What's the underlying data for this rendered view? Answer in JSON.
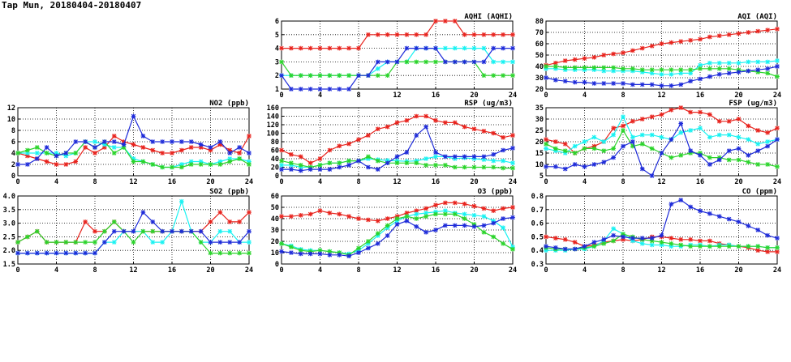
{
  "title": "Tap Mun, 20180404-20180407",
  "colors": {
    "red": "#e8231d",
    "cyan": "#19f2f2",
    "green": "#2bd42b",
    "blue": "#1e2bd9"
  },
  "chart_data": [
    {
      "id": "aqhi",
      "type": "line",
      "title": "AQHI (AQHI)",
      "xlim": [
        0,
        24
      ],
      "ylim": [
        1,
        6
      ],
      "xticks": [
        0,
        4,
        8,
        12,
        16,
        20,
        24
      ],
      "yticks": [
        1,
        2,
        3,
        4,
        5,
        6
      ],
      "grid": true,
      "series": [
        {
          "color": "red",
          "values": [
            4,
            4,
            4,
            4,
            4,
            4,
            4,
            4,
            4,
            5,
            5,
            5,
            5,
            5,
            5,
            5,
            6,
            6,
            6,
            5,
            5,
            5,
            5,
            5,
            5
          ]
        },
        {
          "color": "cyan",
          "values": [
            2,
            2,
            2,
            2,
            2,
            2,
            2,
            2,
            2,
            2,
            2.5,
            3,
            3,
            3,
            4,
            4,
            4,
            4,
            4,
            4,
            4,
            4,
            3,
            3,
            3
          ]
        },
        {
          "color": "green",
          "values": [
            3,
            2,
            2,
            2,
            2,
            2,
            2,
            2,
            2,
            2,
            2,
            2,
            3,
            3,
            3,
            3,
            3,
            3,
            3,
            3,
            3,
            2,
            2,
            2,
            2
          ]
        },
        {
          "color": "blue",
          "values": [
            2,
            1,
            1,
            1,
            1,
            1,
            1,
            1,
            2,
            2,
            3,
            3,
            3,
            4,
            4,
            4,
            4,
            3,
            3,
            3,
            3,
            3,
            4,
            4,
            4
          ]
        }
      ]
    },
    {
      "id": "aqi",
      "type": "line",
      "title": "AQI (AQI)",
      "xlim": [
        0,
        24
      ],
      "ylim": [
        20,
        80
      ],
      "xticks": [
        0,
        4,
        8,
        12,
        16,
        20,
        24
      ],
      "yticks": [
        20,
        30,
        40,
        50,
        60,
        70,
        80
      ],
      "grid": true,
      "series": [
        {
          "color": "red",
          "values": [
            41,
            43,
            45,
            46,
            47,
            48,
            50,
            51,
            52,
            54,
            56,
            58,
            60,
            61,
            62,
            63,
            64,
            66,
            67,
            68,
            69,
            70,
            71,
            72,
            73
          ]
        },
        {
          "color": "cyan",
          "values": [
            38,
            38,
            37,
            37,
            37,
            37,
            36,
            36,
            36,
            36,
            35,
            34,
            33,
            33,
            34,
            34,
            41,
            43,
            43,
            43,
            43,
            44,
            44,
            44,
            45
          ]
        },
        {
          "color": "green",
          "values": [
            40,
            40,
            39,
            39,
            39,
            39,
            39,
            39,
            38,
            38,
            37,
            37,
            37,
            37,
            37,
            37,
            38,
            38,
            38,
            38,
            37,
            36,
            35,
            34,
            31
          ]
        },
        {
          "color": "blue",
          "values": [
            30,
            28,
            27,
            26,
            26,
            25,
            25,
            25,
            25,
            24,
            24,
            24,
            23,
            23,
            24,
            27,
            29,
            31,
            33,
            34,
            35,
            36,
            37,
            38,
            40
          ]
        }
      ]
    },
    {
      "id": "no2",
      "type": "line",
      "title": "NO2 (ppb)",
      "xlim": [
        0,
        24
      ],
      "ylim": [
        0,
        12
      ],
      "xticks": [
        0,
        4,
        8,
        12,
        16,
        20,
        24
      ],
      "yticks": [
        0,
        2,
        4,
        6,
        8,
        10,
        12
      ],
      "grid": true,
      "series": [
        {
          "color": "red",
          "values": [
            4,
            3.5,
            3,
            2.5,
            2,
            2,
            2.5,
            5,
            4,
            5,
            7,
            6,
            5.5,
            5,
            4.5,
            4,
            4,
            4.5,
            5,
            5,
            4.5,
            5.5,
            4.5,
            4,
            7
          ]
        },
        {
          "color": "cyan",
          "values": [
            4,
            4,
            4,
            4,
            4,
            3.5,
            4,
            6,
            6,
            5.5,
            5,
            5,
            3,
            2.5,
            2,
            1.5,
            1.5,
            2,
            2.5,
            2.5,
            2,
            2.5,
            3,
            3,
            2.5
          ]
        },
        {
          "color": "green",
          "values": [
            4,
            4.5,
            5,
            4,
            3.5,
            4,
            4,
            6,
            5,
            6,
            4,
            5,
            2.5,
            2.5,
            2,
            1.5,
            1.5,
            1.5,
            2,
            2,
            2,
            2,
            2.5,
            3,
            2
          ]
        },
        {
          "color": "blue",
          "values": [
            2,
            2,
            3,
            5,
            3.5,
            4,
            6,
            6,
            5,
            6,
            6,
            5.5,
            10.5,
            7,
            6,
            6,
            6,
            6,
            6,
            5.5,
            5,
            6,
            4,
            5,
            4
          ]
        }
      ]
    },
    {
      "id": "rsp",
      "type": "line",
      "title": "RSP (ug/m3)",
      "xlim": [
        0,
        24
      ],
      "ylim": [
        0,
        160
      ],
      "xticks": [
        0,
        4,
        8,
        12,
        16,
        20,
        24
      ],
      "yticks": [
        0,
        20,
        40,
        60,
        80,
        100,
        120,
        140,
        160
      ],
      "grid": true,
      "series": [
        {
          "color": "red",
          "values": [
            60,
            50,
            45,
            30,
            40,
            60,
            70,
            75,
            85,
            95,
            110,
            115,
            125,
            130,
            140,
            140,
            130,
            125,
            125,
            115,
            110,
            105,
            100,
            90,
            95
          ]
        },
        {
          "color": "cyan",
          "values": [
            25,
            25,
            20,
            20,
            25,
            30,
            30,
            35,
            35,
            40,
            38,
            36,
            35,
            34,
            35,
            40,
            45,
            45,
            40,
            42,
            40,
            38,
            35,
            35,
            30
          ]
        },
        {
          "color": "green",
          "values": [
            35,
            30,
            25,
            20,
            25,
            30,
            30,
            35,
            35,
            45,
            35,
            30,
            30,
            30,
            30,
            25,
            25,
            25,
            20,
            20,
            20,
            20,
            20,
            18,
            18
          ]
        },
        {
          "color": "blue",
          "values": [
            15,
            15,
            12,
            15,
            15,
            15,
            20,
            25,
            35,
            20,
            15,
            30,
            45,
            55,
            95,
            115,
            55,
            45,
            45,
            45,
            45,
            45,
            50,
            60,
            65
          ]
        }
      ]
    },
    {
      "id": "fsp",
      "type": "line",
      "title": "FSP (ug/m3)",
      "xlim": [
        0,
        24
      ],
      "ylim": [
        5,
        35
      ],
      "xticks": [
        0,
        4,
        8,
        12,
        16,
        20,
        24
      ],
      "yticks": [
        5,
        10,
        15,
        20,
        25,
        30,
        35
      ],
      "grid": true,
      "series": [
        {
          "color": "red",
          "values": [
            21,
            20,
            19,
            15,
            17,
            18,
            20,
            26,
            27,
            29,
            30,
            31,
            32,
            34,
            35,
            33,
            33,
            32,
            29,
            29,
            30,
            27,
            25,
            24,
            26
          ]
        },
        {
          "color": "cyan",
          "values": [
            17,
            16,
            15,
            18,
            20,
            22,
            20,
            23,
            31,
            22,
            23,
            23,
            22,
            21,
            24,
            25,
            26,
            22,
            23,
            23,
            22,
            21,
            19,
            20,
            21
          ]
        },
        {
          "color": "green",
          "values": [
            19,
            17,
            16,
            15,
            17,
            17,
            16,
            17,
            25,
            18,
            19,
            17,
            15,
            13,
            14,
            15,
            15,
            13,
            13,
            12,
            12,
            11,
            10,
            10,
            9
          ]
        },
        {
          "color": "blue",
          "values": [
            9,
            9,
            8,
            10,
            9,
            10,
            11,
            13,
            18,
            20,
            8,
            5,
            15,
            21,
            28,
            16,
            14,
            10,
            12,
            16,
            17,
            14,
            16,
            18,
            21
          ]
        }
      ]
    },
    {
      "id": "so2",
      "type": "line",
      "title": "SO2 (ppb)",
      "xlim": [
        0,
        24
      ],
      "ylim": [
        1.5,
        4.0
      ],
      "xticks": [
        0,
        4,
        8,
        12,
        16,
        20,
        24
      ],
      "yticks": [
        1.5,
        2.0,
        2.5,
        3.0,
        3.5,
        4.0
      ],
      "grid": true,
      "series": [
        {
          "color": "red",
          "values": [
            2.3,
            2.5,
            2.7,
            2.3,
            2.3,
            2.3,
            2.3,
            3.05,
            2.7,
            2.7,
            3.05,
            2.7,
            2.7,
            2.7,
            2.7,
            2.7,
            2.7,
            2.7,
            2.7,
            2.7,
            3.05,
            3.4,
            3.05,
            3.05,
            3.4
          ]
        },
        {
          "color": "cyan",
          "values": [
            1.9,
            1.9,
            1.9,
            1.9,
            1.9,
            1.9,
            1.9,
            1.9,
            1.9,
            2.3,
            2.3,
            2.7,
            2.7,
            2.7,
            2.3,
            2.3,
            2.7,
            3.8,
            2.7,
            2.3,
            2.3,
            2.7,
            2.7,
            2.3,
            2.3
          ]
        },
        {
          "color": "green",
          "values": [
            2.3,
            2.5,
            2.7,
            2.3,
            2.3,
            2.3,
            2.3,
            2.3,
            2.3,
            2.7,
            3.05,
            2.7,
            2.3,
            2.7,
            2.7,
            2.7,
            2.7,
            2.7,
            2.7,
            2.3,
            1.9,
            1.9,
            1.9,
            1.9,
            1.9
          ]
        },
        {
          "color": "blue",
          "values": [
            1.9,
            1.9,
            1.9,
            1.9,
            1.9,
            1.9,
            1.9,
            1.9,
            1.9,
            2.3,
            2.7,
            2.7,
            2.7,
            3.4,
            3.05,
            2.7,
            2.7,
            2.7,
            2.7,
            2.7,
            2.3,
            2.3,
            2.3,
            2.3,
            2.7
          ]
        }
      ]
    },
    {
      "id": "o3",
      "type": "line",
      "title": "O3 (ppb)",
      "xlim": [
        0,
        24
      ],
      "ylim": [
        0,
        60
      ],
      "xticks": [
        0,
        4,
        8,
        12,
        16,
        20,
        24
      ],
      "yticks": [
        0,
        10,
        20,
        30,
        40,
        50,
        60
      ],
      "grid": true,
      "series": [
        {
          "color": "red",
          "values": [
            42,
            42,
            43,
            44,
            47,
            45,
            44,
            42,
            40,
            39,
            38,
            40,
            42,
            45,
            47,
            49,
            52,
            54,
            54,
            53,
            51,
            49,
            47,
            49,
            50
          ]
        },
        {
          "color": "cyan",
          "values": [
            18,
            16,
            13,
            12,
            12,
            11,
            10,
            9,
            12,
            18,
            25,
            32,
            38,
            42,
            44,
            45,
            46,
            47,
            45,
            44,
            43,
            42,
            38,
            32,
            15
          ]
        },
        {
          "color": "green",
          "values": [
            18,
            15,
            12,
            11,
            12,
            11,
            10,
            8,
            14,
            20,
            27,
            34,
            40,
            42,
            40,
            42,
            44,
            44,
            44,
            40,
            35,
            28,
            24,
            18,
            13
          ]
        },
        {
          "color": "blue",
          "values": [
            11,
            10,
            9,
            9,
            9,
            8,
            8,
            7,
            10,
            14,
            18,
            25,
            35,
            38,
            33,
            28,
            30,
            34,
            34,
            34,
            33,
            34,
            36,
            40,
            41
          ]
        }
      ]
    },
    {
      "id": "co",
      "type": "line",
      "title": "CO (ppm)",
      "xlim": [
        0,
        24
      ],
      "ylim": [
        0.3,
        0.8
      ],
      "xticks": [
        0,
        4,
        8,
        12,
        16,
        20,
        24
      ],
      "yticks": [
        0.3,
        0.4,
        0.5,
        0.6,
        0.7,
        0.8
      ],
      "grid": true,
      "series": [
        {
          "color": "red",
          "values": [
            0.5,
            0.49,
            0.48,
            0.46,
            0.43,
            0.44,
            0.46,
            0.47,
            0.48,
            0.47,
            0.48,
            0.5,
            0.5,
            0.49,
            0.48,
            0.48,
            0.47,
            0.47,
            0.45,
            0.44,
            0.43,
            0.42,
            0.4,
            0.39,
            0.39
          ]
        },
        {
          "color": "cyan",
          "values": [
            0.4,
            0.4,
            0.4,
            0.41,
            0.41,
            0.43,
            0.47,
            0.56,
            0.52,
            0.47,
            0.45,
            0.44,
            0.44,
            0.43,
            0.43,
            0.44,
            0.44,
            0.43,
            0.44,
            0.44,
            0.43,
            0.43,
            0.43,
            0.42,
            0.42
          ]
        },
        {
          "color": "green",
          "values": [
            0.42,
            0.41,
            0.41,
            0.41,
            0.42,
            0.43,
            0.45,
            0.47,
            0.52,
            0.5,
            0.48,
            0.47,
            0.46,
            0.45,
            0.44,
            0.43,
            0.43,
            0.43,
            0.43,
            0.43,
            0.43,
            0.43,
            0.43,
            0.42,
            0.42
          ]
        },
        {
          "color": "blue",
          "values": [
            0.43,
            0.42,
            0.41,
            0.41,
            0.43,
            0.46,
            0.48,
            0.51,
            0.5,
            0.49,
            0.49,
            0.49,
            0.51,
            0.74,
            0.77,
            0.72,
            0.69,
            0.67,
            0.65,
            0.63,
            0.61,
            0.58,
            0.55,
            0.51,
            0.49
          ]
        }
      ]
    }
  ]
}
